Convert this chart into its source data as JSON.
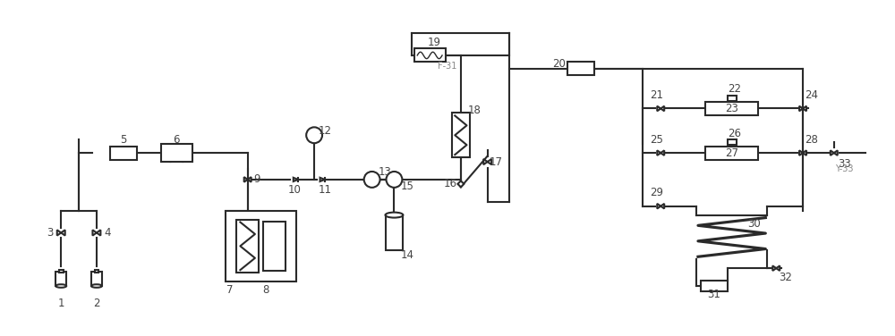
{
  "bg_color": "#ffffff",
  "line_color": "#2a2a2a",
  "line_width": 1.5,
  "thin_line": 1.0,
  "label_color": "#555555",
  "label_fontsize": 8.5
}
